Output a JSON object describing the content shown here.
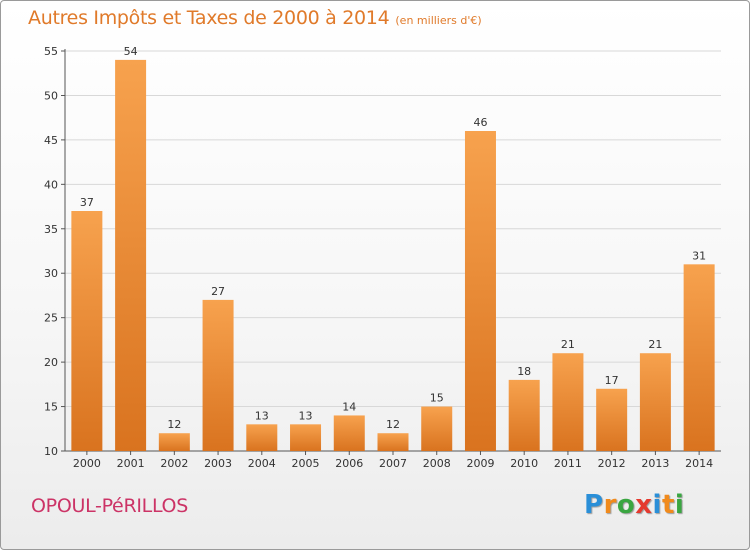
{
  "chart_data": {
    "type": "bar",
    "title": "Autres Impôts et Taxes de 2000 à 2014",
    "subtitle": "(en milliers d'€)",
    "categories": [
      "2000",
      "2001",
      "2002",
      "2003",
      "2004",
      "2005",
      "2006",
      "2007",
      "2008",
      "2009",
      "2010",
      "2011",
      "2012",
      "2013",
      "2014"
    ],
    "values": [
      37,
      54,
      12,
      27,
      13,
      13,
      14,
      12,
      15,
      46,
      18,
      21,
      17,
      21,
      31
    ],
    "ylim": [
      10,
      55
    ],
    "yticks": [
      10,
      15,
      20,
      25,
      30,
      35,
      40,
      45,
      50,
      55
    ],
    "grid": true,
    "legend": "none",
    "bar_color_top": "#f7a24e",
    "bar_color_bottom": "#d9731f"
  },
  "footer": {
    "town": "OPOUL-PéRILLOS",
    "logo_text": "Proxiti"
  },
  "colors": {
    "title": "#e07a2a",
    "town": "#cc3366",
    "logo": [
      "#2a8fd8",
      "#f08a1c",
      "#3aa641",
      "#e53a2f",
      "#2a8fd8",
      "#f08a1c",
      "#3aa641"
    ]
  }
}
